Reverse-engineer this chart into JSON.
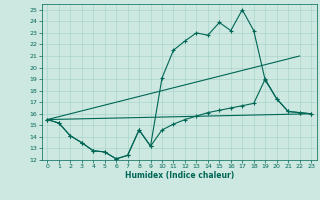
{
  "xlabel": "Humidex (Indice chaleur)",
  "bg_color": "#cce8e0",
  "grid_color": "#aad4cc",
  "line_color": "#006655",
  "xlim": [
    -0.5,
    23.5
  ],
  "ylim": [
    12,
    25.5
  ],
  "yticks": [
    12,
    13,
    14,
    15,
    16,
    17,
    18,
    19,
    20,
    21,
    22,
    23,
    24,
    25
  ],
  "xticks": [
    0,
    1,
    2,
    3,
    4,
    5,
    6,
    7,
    8,
    9,
    10,
    11,
    12,
    13,
    14,
    15,
    16,
    17,
    18,
    19,
    20,
    21,
    22,
    23
  ],
  "line1_x": [
    0,
    1,
    2,
    3,
    4,
    5,
    6,
    7,
    8,
    9,
    10,
    11,
    12,
    13,
    14,
    15,
    16,
    17,
    18,
    19,
    20,
    21,
    22,
    23
  ],
  "line1_y": [
    15.5,
    15.2,
    14.1,
    13.5,
    12.8,
    12.7,
    12.1,
    12.4,
    14.6,
    13.2,
    19.1,
    21.5,
    22.3,
    23.0,
    22.8,
    23.9,
    23.2,
    25.0,
    23.2,
    18.9,
    17.3,
    16.2,
    16.1,
    16.0
  ],
  "line2_x": [
    0,
    22
  ],
  "line2_y": [
    15.5,
    21.0
  ],
  "line3_x": [
    0,
    23
  ],
  "line3_y": [
    15.5,
    16.0
  ],
  "line4_x": [
    0,
    1,
    2,
    3,
    4,
    5,
    6,
    7,
    8,
    9,
    10,
    11,
    12,
    13,
    14,
    15,
    16,
    17,
    18,
    19,
    20,
    21,
    22,
    23
  ],
  "line4_y": [
    15.5,
    15.2,
    14.1,
    13.5,
    12.8,
    12.7,
    12.1,
    12.4,
    14.6,
    13.2,
    14.6,
    15.1,
    15.5,
    15.8,
    16.1,
    16.3,
    16.5,
    16.7,
    16.9,
    19.0,
    17.3,
    16.2,
    16.1,
    16.0
  ]
}
